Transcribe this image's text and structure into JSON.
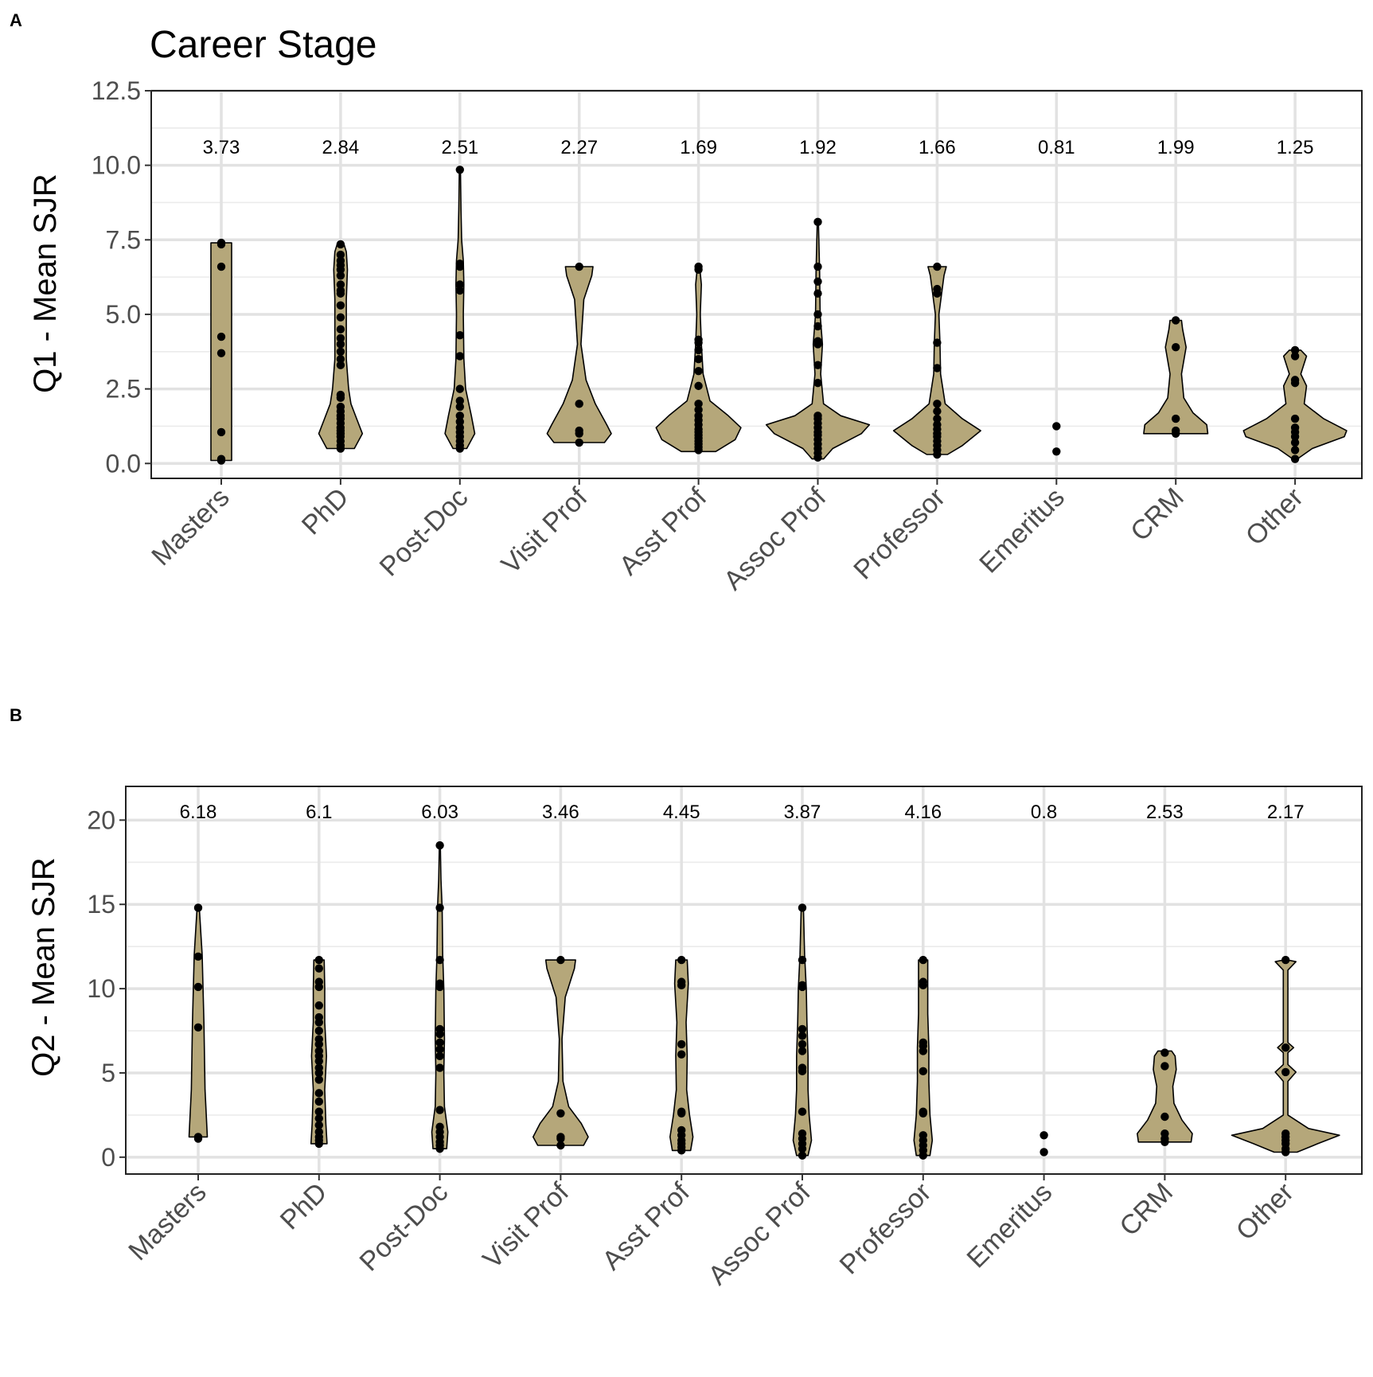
{
  "figure_title": "Career Stage",
  "chart_data": [
    {
      "panel_label": "A",
      "type": "violin",
      "title": "Career Stage",
      "xlabel": "",
      "ylabel": "Q1 - Mean SJR",
      "ylim": [
        -0.5,
        12.5
      ],
      "yticks": [
        0.0,
        2.5,
        5.0,
        7.5,
        10.0,
        12.5
      ],
      "ytick_labels": [
        "0.0",
        "2.5",
        "5.0",
        "7.5",
        "10.0",
        "12.5"
      ],
      "grid": true,
      "mean_label_y": 10.6,
      "categories": [
        "Masters",
        "PhD",
        "Post-Doc",
        "Visit Prof",
        "Asst Prof",
        "Assoc Prof",
        "Professor",
        "Emeritus",
        "CRM",
        "Other"
      ],
      "mean_labels": [
        "3.73",
        "2.84",
        "2.51",
        "2.27",
        "1.69",
        "1.92",
        "1.66",
        "0.81",
        "1.99",
        "1.25"
      ],
      "violins": [
        {
          "min": 0.1,
          "max": 7.4,
          "profile": [
            [
              0.1,
              0.09
            ],
            [
              7.4,
              0.09
            ]
          ]
        },
        {
          "min": 0.5,
          "max": 7.35,
          "profile": [
            [
              0.5,
              0.12
            ],
            [
              1.0,
              0.19
            ],
            [
              1.5,
              0.14
            ],
            [
              2.0,
              0.09
            ],
            [
              2.5,
              0.07
            ],
            [
              3.5,
              0.05
            ],
            [
              4.5,
              0.05
            ],
            [
              5.5,
              0.05
            ],
            [
              6.5,
              0.06
            ],
            [
              7.1,
              0.05
            ],
            [
              7.35,
              0.03
            ]
          ]
        },
        {
          "min": 0.5,
          "max": 9.85,
          "profile": [
            [
              0.5,
              0.06
            ],
            [
              1.0,
              0.13
            ],
            [
              1.6,
              0.1
            ],
            [
              2.5,
              0.05
            ],
            [
              3.5,
              0.035
            ],
            [
              5.0,
              0.03
            ],
            [
              6.0,
              0.035
            ],
            [
              6.8,
              0.03
            ],
            [
              7.5,
              0.015
            ],
            [
              8.5,
              0.01
            ],
            [
              9.85,
              0.005
            ]
          ]
        },
        {
          "min": 0.7,
          "max": 6.6,
          "profile": [
            [
              0.7,
              0.22
            ],
            [
              1.0,
              0.28
            ],
            [
              1.3,
              0.24
            ],
            [
              2.0,
              0.14
            ],
            [
              2.8,
              0.06
            ],
            [
              4.0,
              0.015
            ],
            [
              5.5,
              0.04
            ],
            [
              6.3,
              0.11
            ],
            [
              6.6,
              0.12
            ]
          ]
        },
        {
          "min": 0.4,
          "max": 6.6,
          "profile": [
            [
              0.4,
              0.15
            ],
            [
              0.8,
              0.32
            ],
            [
              1.2,
              0.37
            ],
            [
              1.6,
              0.26
            ],
            [
              2.1,
              0.1
            ],
            [
              3.0,
              0.04
            ],
            [
              4.0,
              0.025
            ],
            [
              5.0,
              0.015
            ],
            [
              6.0,
              0.025
            ],
            [
              6.6,
              0.01
            ]
          ]
        },
        {
          "min": 0.15,
          "max": 8.1,
          "profile": [
            [
              0.15,
              0.05
            ],
            [
              0.5,
              0.13
            ],
            [
              1.0,
              0.38
            ],
            [
              1.3,
              0.45
            ],
            [
              1.6,
              0.2
            ],
            [
              2.0,
              0.05
            ],
            [
              3.0,
              0.025
            ],
            [
              4.0,
              0.04
            ],
            [
              5.0,
              0.02
            ],
            [
              6.5,
              0.015
            ],
            [
              8.1,
              0.005
            ]
          ]
        },
        {
          "min": 0.3,
          "max": 6.6,
          "profile": [
            [
              0.3,
              0.09
            ],
            [
              0.6,
              0.22
            ],
            [
              1.1,
              0.38
            ],
            [
              1.5,
              0.22
            ],
            [
              2.0,
              0.07
            ],
            [
              3.0,
              0.03
            ],
            [
              4.0,
              0.025
            ],
            [
              5.0,
              0.015
            ],
            [
              6.3,
              0.06
            ],
            [
              6.6,
              0.08
            ]
          ]
        },
        null,
        {
          "min": 1.0,
          "max": 4.8,
          "profile": [
            [
              1.0,
              0.28
            ],
            [
              1.3,
              0.27
            ],
            [
              1.7,
              0.15
            ],
            [
              2.2,
              0.07
            ],
            [
              3.0,
              0.05
            ],
            [
              3.9,
              0.09
            ],
            [
              4.5,
              0.06
            ],
            [
              4.8,
              0.05
            ]
          ]
        },
        {
          "min": 0.15,
          "max": 3.8,
          "profile": [
            [
              0.15,
              0.02
            ],
            [
              0.5,
              0.15
            ],
            [
              0.9,
              0.43
            ],
            [
              1.1,
              0.45
            ],
            [
              1.5,
              0.25
            ],
            [
              2.0,
              0.08
            ],
            [
              2.6,
              0.1
            ],
            [
              3.0,
              0.05
            ],
            [
              3.6,
              0.1
            ],
            [
              3.8,
              0.05
            ]
          ]
        }
      ],
      "points": [
        [
          0.1,
          0.15,
          1.05,
          3.7,
          4.25,
          6.6,
          7.35,
          7.4
        ],
        [
          0.5,
          0.6,
          0.75,
          0.9,
          1.0,
          1.1,
          1.2,
          1.35,
          1.5,
          1.6,
          1.75,
          1.9,
          2.2,
          2.3,
          3.3,
          3.5,
          3.75,
          4.0,
          4.2,
          4.5,
          4.9,
          5.3,
          5.7,
          5.8,
          6.0,
          6.3,
          6.5,
          6.65,
          6.8,
          7.0,
          7.35
        ],
        [
          0.5,
          0.6,
          0.75,
          0.9,
          1.05,
          1.2,
          1.4,
          1.6,
          1.9,
          2.1,
          2.5,
          3.6,
          4.3,
          5.8,
          6.0,
          6.6,
          6.7,
          9.85
        ],
        [
          0.7,
          1.0,
          1.1,
          2.0,
          6.6
        ],
        [
          0.45,
          0.55,
          0.65,
          0.75,
          0.85,
          0.95,
          1.05,
          1.15,
          1.3,
          1.45,
          1.6,
          1.8,
          2.0,
          2.6,
          3.1,
          3.5,
          3.8,
          4.05,
          4.15,
          6.5,
          6.6
        ],
        [
          0.2,
          0.35,
          0.5,
          0.65,
          0.8,
          0.95,
          1.05,
          1.2,
          1.35,
          1.5,
          1.6,
          2.7,
          3.3,
          4.0,
          4.1,
          4.6,
          5.0,
          5.7,
          6.1,
          6.6,
          8.1
        ],
        [
          0.3,
          0.45,
          0.6,
          0.75,
          0.9,
          1.0,
          1.15,
          1.3,
          1.5,
          1.75,
          2.0,
          3.2,
          4.05,
          5.7,
          5.85,
          6.6
        ],
        [
          0.4,
          1.25
        ],
        [
          1.0,
          1.1,
          1.5,
          3.9,
          4.8
        ],
        [
          0.15,
          0.45,
          0.7,
          0.9,
          1.05,
          1.2,
          1.5,
          2.7,
          2.8,
          3.6,
          3.8
        ]
      ]
    },
    {
      "panel_label": "B",
      "type": "violin",
      "title": "",
      "xlabel": "",
      "ylabel": "Q2 - Mean SJR",
      "ylim": [
        -1,
        22
      ],
      "yticks": [
        0,
        5,
        10,
        15,
        20
      ],
      "ytick_labels": [
        "0",
        "5",
        "10",
        "15",
        "20"
      ],
      "grid": true,
      "mean_label_y": 20.5,
      "categories": [
        "Masters",
        "PhD",
        "Post-Doc",
        "Visit Prof",
        "Asst Prof",
        "Assoc Prof",
        "Professor",
        "Emeritus",
        "CRM",
        "Other"
      ],
      "mean_labels": [
        "6.18",
        "6.1",
        "6.03",
        "3.46",
        "4.45",
        "3.87",
        "4.16",
        "0.8",
        "2.53",
        "2.17"
      ],
      "violins": [
        {
          "min": 1.2,
          "max": 14.8,
          "profile": [
            [
              1.2,
              0.08
            ],
            [
              4.0,
              0.06
            ],
            [
              8.0,
              0.05
            ],
            [
              12.0,
              0.035
            ],
            [
              14.8,
              0.01
            ]
          ]
        },
        {
          "min": 0.8,
          "max": 11.7,
          "profile": [
            [
              0.8,
              0.07
            ],
            [
              2.0,
              0.06
            ],
            [
              4.0,
              0.05
            ],
            [
              6.0,
              0.065
            ],
            [
              8.0,
              0.05
            ],
            [
              10.0,
              0.05
            ],
            [
              11.7,
              0.045
            ]
          ]
        },
        {
          "min": 0.5,
          "max": 18.5,
          "profile": [
            [
              0.5,
              0.06
            ],
            [
              1.5,
              0.07
            ],
            [
              3.0,
              0.04
            ],
            [
              5.0,
              0.035
            ],
            [
              7.0,
              0.04
            ],
            [
              10.0,
              0.035
            ],
            [
              12.0,
              0.025
            ],
            [
              14.8,
              0.02
            ],
            [
              16.5,
              0.01
            ],
            [
              18.5,
              0.004
            ]
          ]
        },
        {
          "min": 0.7,
          "max": 11.7,
          "profile": [
            [
              0.7,
              0.2
            ],
            [
              1.2,
              0.24
            ],
            [
              2.0,
              0.18
            ],
            [
              3.0,
              0.07
            ],
            [
              4.5,
              0.02
            ],
            [
              7.0,
              0.012
            ],
            [
              9.5,
              0.04
            ],
            [
              11.2,
              0.12
            ],
            [
              11.7,
              0.13
            ]
          ]
        },
        {
          "min": 0.4,
          "max": 11.7,
          "profile": [
            [
              0.4,
              0.08
            ],
            [
              1.2,
              0.1
            ],
            [
              2.5,
              0.07
            ],
            [
              4.0,
              0.045
            ],
            [
              6.0,
              0.05
            ],
            [
              8.0,
              0.04
            ],
            [
              10.3,
              0.06
            ],
            [
              11.7,
              0.05
            ]
          ]
        },
        {
          "min": 0.1,
          "max": 14.8,
          "profile": [
            [
              0.1,
              0.05
            ],
            [
              1.0,
              0.08
            ],
            [
              2.5,
              0.06
            ],
            [
              4.0,
              0.05
            ],
            [
              6.0,
              0.05
            ],
            [
              8.0,
              0.04
            ],
            [
              10.0,
              0.035
            ],
            [
              12.0,
              0.02
            ],
            [
              14.8,
              0.01
            ]
          ]
        },
        {
          "min": 0.1,
          "max": 11.7,
          "profile": [
            [
              0.1,
              0.06
            ],
            [
              1.0,
              0.08
            ],
            [
              2.5,
              0.06
            ],
            [
              4.5,
              0.05
            ],
            [
              6.5,
              0.05
            ],
            [
              8.5,
              0.04
            ],
            [
              10.5,
              0.04
            ],
            [
              11.7,
              0.04
            ]
          ]
        },
        null,
        {
          "min": 0.9,
          "max": 6.3,
          "profile": [
            [
              0.9,
              0.23
            ],
            [
              1.4,
              0.24
            ],
            [
              2.2,
              0.15
            ],
            [
              3.2,
              0.08
            ],
            [
              4.2,
              0.07
            ],
            [
              5.2,
              0.1
            ],
            [
              6.0,
              0.09
            ],
            [
              6.3,
              0.06
            ]
          ]
        },
        {
          "min": 0.3,
          "max": 11.7,
          "profile": [
            [
              0.3,
              0.1
            ],
            [
              0.8,
              0.28
            ],
            [
              1.3,
              0.47
            ],
            [
              1.7,
              0.2
            ],
            [
              2.5,
              0.02
            ],
            [
              4.5,
              0.02
            ],
            [
              5.05,
              0.09
            ],
            [
              5.5,
              0.02
            ],
            [
              6.2,
              0.02
            ],
            [
              6.5,
              0.07
            ],
            [
              6.8,
              0.02
            ],
            [
              11.1,
              0.02
            ],
            [
              11.6,
              0.09
            ],
            [
              11.7,
              0.02
            ]
          ]
        }
      ],
      "points": [
        [
          1.1,
          1.2,
          7.7,
          10.1,
          11.9,
          14.8
        ],
        [
          0.8,
          1.0,
          1.2,
          1.5,
          1.9,
          2.3,
          2.7,
          3.3,
          3.8,
          4.6,
          5.0,
          5.3,
          5.7,
          6.0,
          6.3,
          6.7,
          7.0,
          7.5,
          8.0,
          8.3,
          9.0,
          10.1,
          10.4,
          11.2,
          11.7
        ],
        [
          0.5,
          0.7,
          0.9,
          1.2,
          1.5,
          1.8,
          2.8,
          5.3,
          6.0,
          6.4,
          6.8,
          7.3,
          7.6,
          10.1,
          10.3,
          11.7,
          14.8,
          18.5
        ],
        [
          0.7,
          1.1,
          1.2,
          2.6,
          11.7
        ],
        [
          0.4,
          0.6,
          0.8,
          1.0,
          1.3,
          1.6,
          2.6,
          2.7,
          6.1,
          6.7,
          10.2,
          10.4,
          11.7
        ],
        [
          0.1,
          0.5,
          0.8,
          1.1,
          1.4,
          2.7,
          5.1,
          5.3,
          6.3,
          6.7,
          7.2,
          7.6,
          10.1,
          10.2,
          11.7,
          14.8
        ],
        [
          0.1,
          0.4,
          0.7,
          1.0,
          1.3,
          2.6,
          2.7,
          5.1,
          6.3,
          6.6,
          6.8,
          10.2,
          10.4,
          11.7
        ],
        [
          0.3,
          1.3
        ],
        [
          0.9,
          1.1,
          1.4,
          2.4,
          5.4,
          6.2
        ],
        [
          0.3,
          0.5,
          0.8,
          1.0,
          1.2,
          1.4,
          5.05,
          6.5,
          11.7
        ]
      ]
    }
  ]
}
